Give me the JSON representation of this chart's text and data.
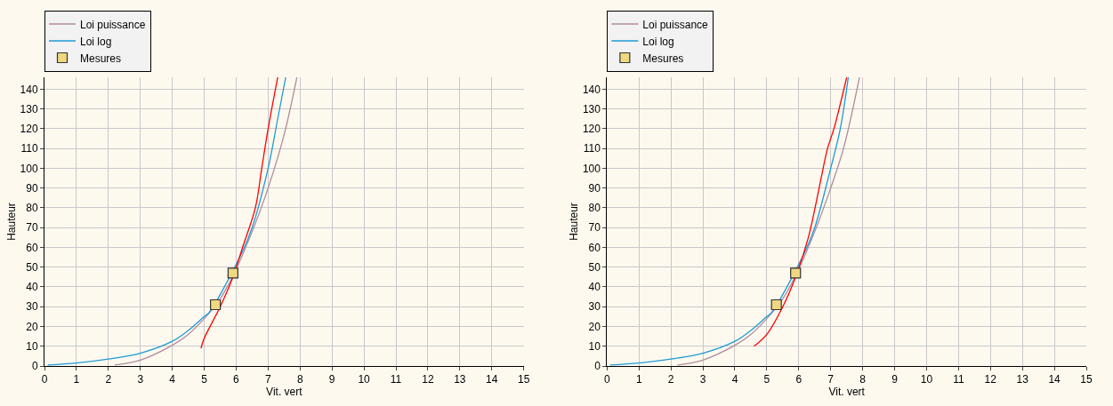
{
  "chart_data": [
    {
      "type": "line",
      "xlabel": "Vit. vert",
      "ylabel": "Hauteur",
      "xlim": [
        0,
        15
      ],
      "ylim": [
        0,
        146
      ],
      "xticks": [
        0,
        1,
        2,
        3,
        4,
        5,
        6,
        7,
        8,
        9,
        10,
        11,
        12,
        13,
        14,
        15
      ],
      "yticks": [
        0,
        10,
        20,
        30,
        40,
        50,
        60,
        70,
        80,
        90,
        100,
        110,
        120,
        130,
        140
      ],
      "grid": true,
      "legend": "top left",
      "marker": "none",
      "series": [
        {
          "name": "Loi puissance",
          "color": "#b08c9c",
          "x": [
            2.2,
            3,
            4,
            4.5,
            5,
            5.5,
            6,
            6.5,
            7,
            7.5,
            7.9
          ],
          "values": [
            0.5,
            3,
            10.5,
            16,
            24,
            34,
            49,
            68,
            90,
            117,
            146
          ]
        },
        {
          "name": "Loi log",
          "color": "#1f9ad6",
          "x": [
            0.1,
            1,
            2,
            3,
            4,
            4.5,
            5,
            5.15,
            6.2,
            6.5,
            7,
            7.3,
            7.55
          ],
          "values": [
            0.5,
            1.5,
            3.5,
            6.5,
            12.5,
            18,
            25,
            27,
            58,
            70,
            100,
            125,
            146
          ]
        },
        {
          "color": "#ff0000",
          "x": [
            4.9,
            5,
            5.5,
            5.9,
            6.2,
            6.6,
            6.8,
            7,
            7.3
          ],
          "values": [
            9,
            14,
            30,
            45,
            60,
            80,
            100,
            120,
            146
          ]
        },
        {
          "name": "Mesures",
          "type": "scatter",
          "marker": "square",
          "color": "#f0d880",
          "x": [
            5.35,
            5.9
          ],
          "values": [
            31,
            47
          ]
        }
      ]
    },
    {
      "type": "line",
      "xlabel": "Vit. vert",
      "ylabel": "Hauteur",
      "xlim": [
        0,
        15
      ],
      "ylim": [
        0,
        146
      ],
      "xticks": [
        0,
        1,
        2,
        3,
        4,
        5,
        6,
        7,
        8,
        9,
        10,
        11,
        12,
        13,
        14,
        15
      ],
      "yticks": [
        0,
        10,
        20,
        30,
        40,
        50,
        60,
        70,
        80,
        90,
        100,
        110,
        120,
        130,
        140
      ],
      "grid": true,
      "legend": "top left",
      "marker": "none",
      "series": [
        {
          "name": "Loi puissance",
          "color": "#b08c9c",
          "x": [
            2.2,
            3,
            4,
            4.5,
            5,
            5.5,
            6,
            6.5,
            7,
            7.4,
            7.9
          ],
          "values": [
            0.5,
            3,
            10.5,
            16,
            24,
            34,
            49,
            68,
            90,
            110,
            146
          ]
        },
        {
          "name": "Loi log",
          "color": "#1f9ad6",
          "x": [
            0.1,
            1,
            2,
            3,
            4,
            4.5,
            5,
            5.15,
            6.2,
            6.5,
            7,
            7.3,
            7.55
          ],
          "values": [
            0.5,
            1.5,
            3.5,
            6.5,
            12.5,
            18,
            25,
            27,
            58,
            70,
            100,
            120,
            146
          ]
        },
        {
          "color": "#ff0000",
          "x": [
            4.6,
            5,
            5.5,
            5.9,
            6.3,
            6.7,
            6.9,
            7.1,
            7.5
          ],
          "values": [
            10,
            16,
            30,
            45,
            65,
            95,
            110,
            120,
            146
          ]
        },
        {
          "name": "Mesures",
          "type": "scatter",
          "marker": "square",
          "color": "#f0d880",
          "x": [
            5.3,
            5.9
          ],
          "values": [
            31,
            47
          ]
        }
      ]
    }
  ]
}
